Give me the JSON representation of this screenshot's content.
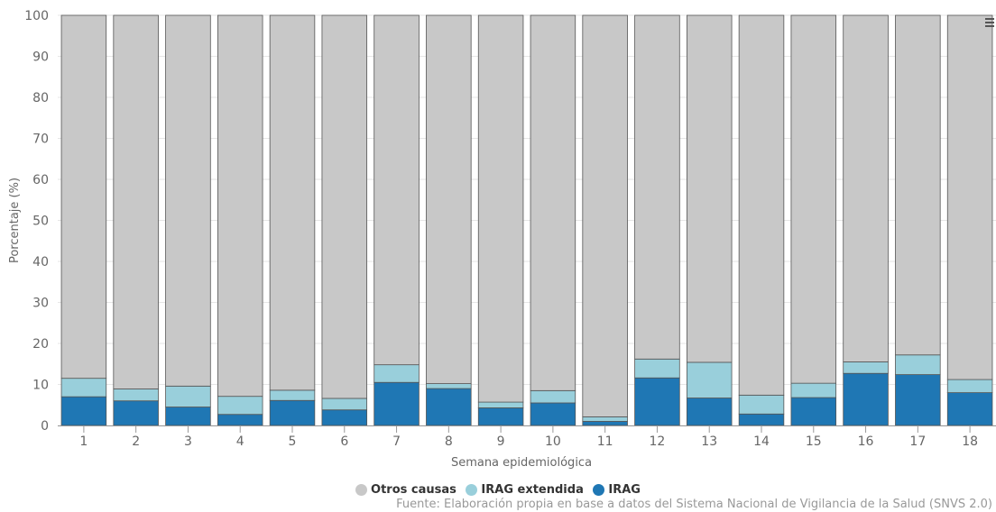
{
  "chart_data": {
    "type": "bar",
    "stacked": true,
    "categories": [
      "1",
      "2",
      "3",
      "4",
      "5",
      "6",
      "7",
      "8",
      "9",
      "10",
      "11",
      "12",
      "13",
      "14",
      "15",
      "16",
      "17",
      "18"
    ],
    "series": [
      {
        "name": "IRAG",
        "color": "#1f77b4",
        "values": [
          7.0,
          6.0,
          4.5,
          2.7,
          6.1,
          3.8,
          10.5,
          9.0,
          4.3,
          5.5,
          1.0,
          11.6,
          6.7,
          2.8,
          6.8,
          12.7,
          12.4,
          8.0
        ]
      },
      {
        "name": "IRAG extendida",
        "color": "#99cfdb",
        "values": [
          4.5,
          2.9,
          5.1,
          4.4,
          2.5,
          2.8,
          4.3,
          1.2,
          1.4,
          3.0,
          1.1,
          4.6,
          8.7,
          4.6,
          3.5,
          2.8,
          4.8,
          3.2
        ]
      },
      {
        "name": "Otros causas",
        "color": "#c8c8c8",
        "values": [
          88.5,
          91.1,
          90.4,
          92.9,
          91.4,
          93.4,
          85.2,
          89.8,
          94.3,
          91.5,
          97.9,
          83.8,
          84.6,
          92.6,
          89.7,
          84.5,
          82.8,
          88.8
        ]
      }
    ],
    "ylabel": "Porcentaje (%)",
    "xlabel": "Semana epidemiológica",
    "ylim": [
      0,
      100
    ],
    "yticks": [
      "0",
      "10",
      "20",
      "30",
      "40",
      "50",
      "60",
      "70",
      "80",
      "90",
      "100"
    ],
    "grid": true,
    "legend_position": "bottom-center"
  },
  "legend": [
    {
      "label": "Otros causas",
      "color": "#c8c8c8"
    },
    {
      "label": "IRAG extendida",
      "color": "#99cfdb"
    },
    {
      "label": "IRAG",
      "color": "#1f77b4"
    }
  ],
  "source": "Fuente: Elaboración propia en base a datos del Sistema Nacional de Vigilancia de la Salud (SNVS 2.0)",
  "menu_icon": "hamburger-menu-icon"
}
